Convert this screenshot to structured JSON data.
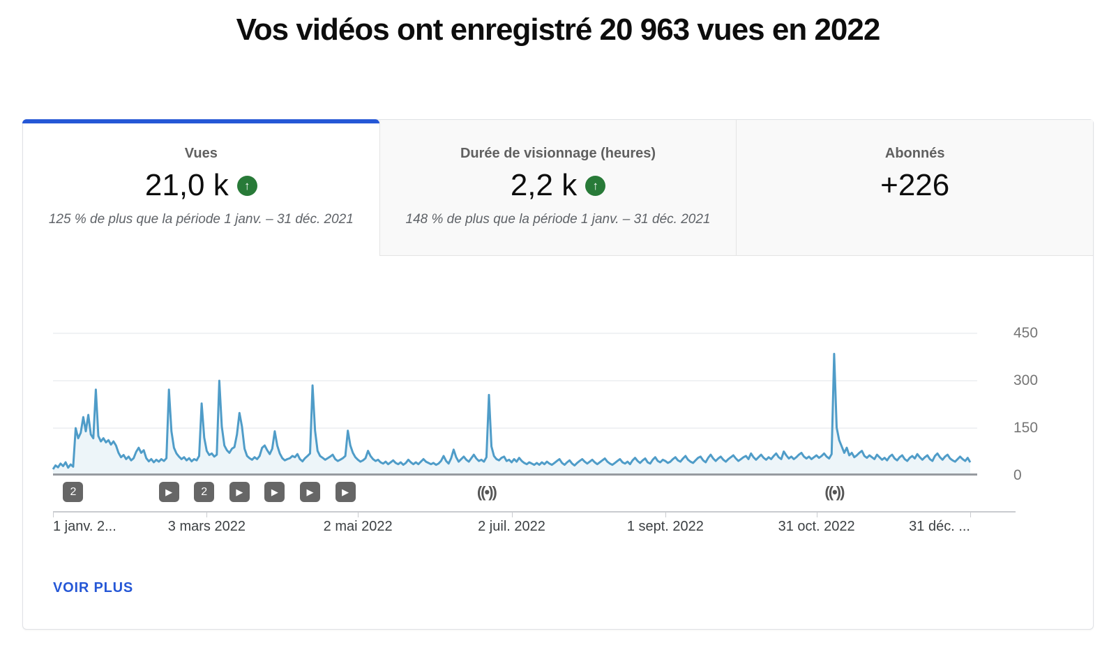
{
  "page": {
    "title": "Vos vidéos ont enregistré 20 963 vues en 2022"
  },
  "metrics": {
    "tabs": [
      {
        "label": "Vues",
        "value": "21,0 k",
        "trend": "up",
        "comparison": "125 % de plus que la période 1 janv. – 31 déc. 2021",
        "active": true
      },
      {
        "label": "Durée de visionnage (heures)",
        "value": "2,2 k",
        "trend": "up",
        "comparison": "148 % de plus que la période 1 janv. – 31 déc. 2021",
        "active": false
      },
      {
        "label": "Abonnés",
        "value": "+226",
        "trend": "none",
        "comparison": "",
        "active": false
      }
    ]
  },
  "icons": {
    "trend_up": "↑",
    "play": "▶",
    "live": "((•))"
  },
  "footer": {
    "see_more_label": "VOIR PLUS"
  },
  "colors": {
    "accent_blue": "#2557d6",
    "line_blue": "#4f9cc8",
    "area_fill": "rgba(79,156,200,0.10)",
    "gridline": "#e8eaed",
    "baseline": "#979ba0",
    "trend_green": "#287a38",
    "marker_gray": "#666666"
  },
  "chart_data": {
    "type": "area",
    "series_name": "Vues",
    "x_unit": "jour de 2022 (index 0 = 1 janv., 364 = 31 déc.)",
    "ylim": [
      0,
      500
    ],
    "y_ticks": [
      450,
      300,
      150,
      0
    ],
    "x_ticks": [
      {
        "day": 0,
        "label": "1 janv. 2...",
        "align": "left"
      },
      {
        "day": 61,
        "label": "3 mars 2022",
        "align": "center"
      },
      {
        "day": 121,
        "label": "2 mai 2022",
        "align": "center"
      },
      {
        "day": 182,
        "label": "2 juil. 2022",
        "align": "center"
      },
      {
        "day": 243,
        "label": "1 sept. 2022",
        "align": "center"
      },
      {
        "day": 303,
        "label": "31 oct. 2022",
        "align": "center"
      },
      {
        "day": 364,
        "label": "31 déc. ...",
        "align": "right"
      }
    ],
    "markers": [
      {
        "day": 8,
        "type": "video-count",
        "label": "2"
      },
      {
        "day": 46,
        "type": "video"
      },
      {
        "day": 60,
        "type": "video-count",
        "label": "2"
      },
      {
        "day": 74,
        "type": "video"
      },
      {
        "day": 88,
        "type": "video"
      },
      {
        "day": 102,
        "type": "video"
      },
      {
        "day": 116,
        "type": "video"
      },
      {
        "day": 172,
        "type": "live"
      },
      {
        "day": 310,
        "type": "live"
      }
    ],
    "values": [
      20,
      32,
      26,
      38,
      30,
      42,
      25,
      35,
      28,
      150,
      118,
      135,
      185,
      140,
      192,
      130,
      118,
      272,
      125,
      108,
      118,
      105,
      112,
      98,
      108,
      95,
      72,
      58,
      65,
      52,
      60,
      48,
      55,
      75,
      88,
      72,
      80,
      55,
      45,
      52,
      42,
      50,
      44,
      52,
      46,
      55,
      272,
      140,
      88,
      70,
      60,
      52,
      58,
      48,
      55,
      45,
      52,
      48,
      62,
      228,
      120,
      78,
      65,
      70,
      60,
      66,
      300,
      155,
      95,
      80,
      72,
      85,
      90,
      130,
      198,
      155,
      85,
      62,
      55,
      50,
      58,
      52,
      62,
      88,
      95,
      80,
      68,
      85,
      140,
      95,
      70,
      55,
      48,
      52,
      55,
      62,
      58,
      68,
      52,
      45,
      55,
      62,
      70,
      285,
      142,
      78,
      62,
      56,
      50,
      55,
      60,
      66,
      52,
      46,
      50,
      55,
      62,
      142,
      95,
      72,
      58,
      50,
      44,
      48,
      55,
      78,
      62,
      52,
      46,
      50,
      42,
      38,
      44,
      36,
      42,
      48,
      40,
      36,
      42,
      34,
      40,
      50,
      42,
      36,
      42,
      36,
      44,
      52,
      44,
      40,
      36,
      40,
      34,
      38,
      46,
      62,
      46,
      38,
      55,
      82,
      58,
      44,
      52,
      60,
      50,
      44,
      55,
      66,
      54,
      46,
      50,
      44,
      58,
      255,
      92,
      62,
      52,
      48,
      56,
      60,
      46,
      50,
      42,
      52,
      44,
      56,
      46,
      40,
      36,
      42,
      38,
      34,
      40,
      34,
      42,
      36,
      44,
      38,
      34,
      40,
      46,
      52,
      40,
      34,
      42,
      48,
      38,
      32,
      40,
      46,
      52,
      44,
      38,
      44,
      50,
      42,
      36,
      42,
      48,
      54,
      44,
      38,
      34,
      40,
      46,
      52,
      42,
      38,
      44,
      36,
      48,
      56,
      46,
      40,
      48,
      54,
      42,
      38,
      50,
      58,
      46,
      42,
      50,
      46,
      40,
      44,
      52,
      58,
      48,
      44,
      54,
      62,
      50,
      44,
      40,
      48,
      56,
      60,
      48,
      42,
      56,
      66,
      54,
      46,
      54,
      60,
      50,
      44,
      52,
      58,
      64,
      54,
      46,
      52,
      58,
      62,
      52,
      70,
      58,
      50,
      58,
      66,
      56,
      50,
      58,
      52,
      62,
      70,
      58,
      52,
      76,
      64,
      54,
      60,
      52,
      58,
      66,
      72,
      60,
      54,
      60,
      52,
      58,
      64,
      56,
      62,
      70,
      60,
      54,
      68,
      385,
      152,
      112,
      92,
      72,
      88,
      64,
      72,
      58,
      64,
      72,
      78,
      62,
      56,
      64,
      58,
      52,
      66,
      58,
      50,
      56,
      48,
      60,
      66,
      54,
      48,
      58,
      64,
      52,
      46,
      56,
      62,
      54,
      68,
      58,
      50,
      58,
      64,
      52,
      46,
      62,
      70,
      58,
      50,
      60,
      66,
      54,
      48,
      44,
      52,
      60,
      52,
      46,
      56,
      42
    ]
  }
}
